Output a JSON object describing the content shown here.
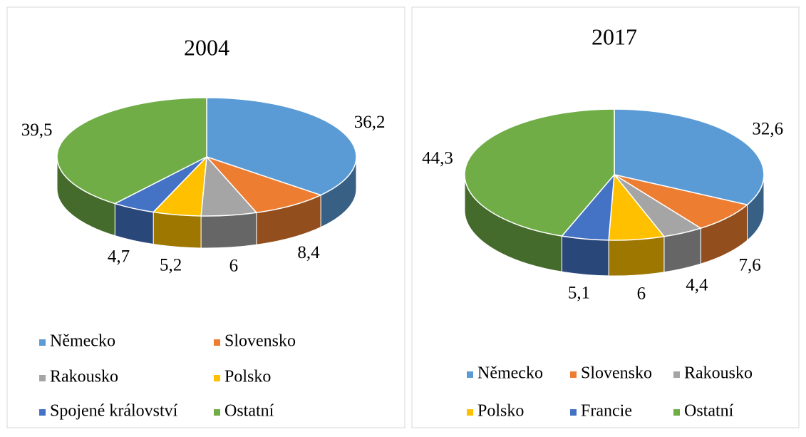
{
  "chart_data": [
    {
      "type": "pie",
      "title": "2004",
      "categories": [
        "Německo",
        "Slovensko",
        "Rakousko",
        "Polsko",
        "Spojené království",
        "Ostatní"
      ],
      "values": [
        36.2,
        8.4,
        6,
        5.2,
        4.7,
        39.5
      ],
      "value_labels": [
        "36,2",
        "8,4",
        "6",
        "5,2",
        "4,7",
        "39,5"
      ],
      "colors": [
        "#5b9bd5",
        "#ed7d31",
        "#a5a5a5",
        "#ffc000",
        "#4472c4",
        "#70ad47"
      ]
    },
    {
      "type": "pie",
      "title": "2017",
      "categories": [
        "Německo",
        "Slovensko",
        "Rakousko",
        "Polsko",
        "Francie",
        "Ostatní"
      ],
      "values": [
        32.6,
        7.6,
        4.4,
        6,
        5.1,
        44.3
      ],
      "value_labels": [
        "32,6",
        "7,6",
        "4,4",
        "6",
        "5,1",
        "44,3"
      ],
      "colors": [
        "#5b9bd5",
        "#ed7d31",
        "#a5a5a5",
        "#ffc000",
        "#4472c4",
        "#70ad47"
      ]
    }
  ]
}
